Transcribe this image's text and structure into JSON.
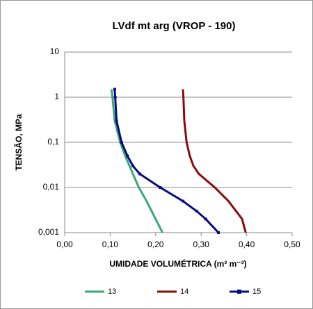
{
  "chart_data": {
    "type": "line",
    "title": "LVdf mt arg  (VROP - 190)",
    "x_label": "UMIDADE VOLUMÉTRICA (m³ m⁻³)",
    "y_label": "TENSÃO, MPa",
    "ylog": true,
    "grid": true,
    "legend": "bottom",
    "xlim": [
      0,
      0.5
    ],
    "ylim": [
      0.001,
      10
    ],
    "xticks": [
      {
        "value": 0,
        "label": "0,00"
      },
      {
        "value": 0.1,
        "label": "0,10"
      },
      {
        "value": 0.2,
        "label": "0,20"
      },
      {
        "value": 0.3,
        "label": "0,30"
      },
      {
        "value": 0.4,
        "label": "0,40"
      },
      {
        "value": 0.5,
        "label": "0,50"
      }
    ],
    "yticks": [
      {
        "value": 0.001,
        "label": "0,001"
      },
      {
        "value": 0.01,
        "label": "0,01"
      },
      {
        "value": 0.1,
        "label": "0,1"
      },
      1,
      10
    ],
    "series": [
      {
        "name": "13",
        "color": "#3aa876",
        "markers": false,
        "x": [
          0.103,
          0.105,
          0.11,
          0.122,
          0.133,
          0.15,
          0.163,
          0.18,
          0.2,
          0.215
        ],
        "values": [
          1.5,
          1,
          0.3,
          0.1,
          0.05,
          0.02,
          0.01,
          0.005,
          0.002,
          0.001
        ]
      },
      {
        "name": "14",
        "color": "#8b0a0a",
        "markers": false,
        "x": [
          0.26,
          0.261,
          0.263,
          0.268,
          0.275,
          0.283,
          0.295,
          0.33,
          0.36,
          0.39,
          0.398
        ],
        "values": [
          1.5,
          1,
          0.3,
          0.1,
          0.05,
          0.03,
          0.02,
          0.01,
          0.005,
          0.002,
          0.001
        ]
      },
      {
        "name": "15",
        "color": "#0a0a80",
        "markers": true,
        "x": [
          0.11,
          0.111,
          0.114,
          0.125,
          0.138,
          0.15,
          0.165,
          0.21,
          0.26,
          0.29,
          0.31,
          0.338
        ],
        "values": [
          1.5,
          1,
          0.3,
          0.1,
          0.05,
          0.03,
          0.02,
          0.01,
          0.005,
          0.003,
          0.002,
          0.001
        ]
      }
    ]
  }
}
